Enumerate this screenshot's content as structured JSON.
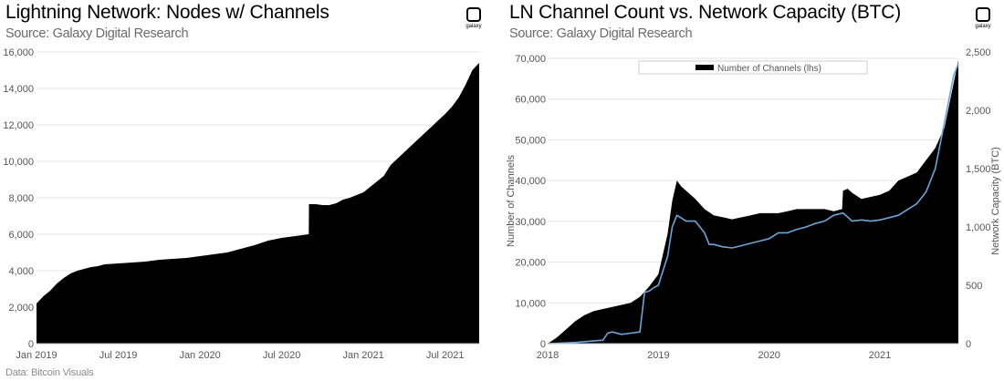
{
  "colors": {
    "area": "#000000",
    "line": "#6aa6d8",
    "text": "#555555"
  },
  "logo": {
    "text": "galaxy"
  },
  "left_panel": {
    "title": "Lightning Network: Nodes w/ Channels",
    "subtitle": "Source: Galaxy Digital Research",
    "footnote": "Data: Bitcoin Visuals"
  },
  "right_panel": {
    "title": "LN Channel Count vs. Network Capacity (BTC)",
    "subtitle": "Source: Galaxy Digital Research"
  },
  "chart_data": [
    {
      "type": "area",
      "title": "Lightning Network: Nodes w/ Channels",
      "xlabel": "",
      "ylabel": "",
      "x_unit": "months since Jan 2019",
      "xlim": [
        0,
        32.5
      ],
      "ylim": [
        0,
        16000
      ],
      "yticks": [
        0,
        2000,
        4000,
        6000,
        8000,
        10000,
        12000,
        14000,
        16000
      ],
      "ytick_labels": [
        "0",
        "2,000",
        "4,000",
        "6,000",
        "8,000",
        "10,000",
        "12,000",
        "14,000",
        "16,000"
      ],
      "xticks": [
        0,
        6,
        12,
        18,
        24,
        30
      ],
      "xtick_labels": [
        "Jan 2019",
        "Jul 2019",
        "Jan 2020",
        "Jul 2020",
        "Jan 2021",
        "Jul 2021"
      ],
      "grid": true,
      "series": [
        {
          "name": "Nodes with Channels",
          "x": [
            0,
            0.5,
            1,
            1.5,
            2,
            2.5,
            3,
            3.5,
            4,
            4.5,
            5,
            6,
            7,
            8,
            9,
            10,
            11,
            12,
            13,
            14,
            15,
            16,
            17,
            18,
            19,
            19.99,
            20,
            20.5,
            21,
            21.5,
            22,
            22.5,
            23,
            24,
            25,
            25.5,
            26,
            27,
            28,
            29,
            30,
            30.5,
            31,
            31.5,
            32,
            32.5
          ],
          "values": [
            2200,
            2600,
            2900,
            3300,
            3600,
            3850,
            4000,
            4100,
            4200,
            4250,
            4350,
            4400,
            4450,
            4500,
            4600,
            4650,
            4700,
            4800,
            4900,
            5000,
            5200,
            5400,
            5650,
            5800,
            5900,
            6000,
            7650,
            7650,
            7600,
            7600,
            7700,
            7900,
            8000,
            8300,
            8900,
            9200,
            9800,
            10500,
            11200,
            11900,
            12600,
            13000,
            13500,
            14200,
            15000,
            15400
          ]
        }
      ]
    },
    {
      "type": "area",
      "title": "LN Channel Count vs. Network Capacity (BTC)",
      "xlabel": "",
      "ylabel": "Number of Channels",
      "y2label": "Network Capacity (BTC)",
      "x_unit": "months since Jan 2018",
      "xlim": [
        0,
        44.5
      ],
      "ylim": [
        0,
        70000
      ],
      "y2lim": [
        0,
        2500
      ],
      "yticks": [
        0,
        10000,
        20000,
        30000,
        40000,
        50000,
        60000,
        70000
      ],
      "ytick_labels": [
        "0",
        "10,000",
        "20,000",
        "30,000",
        "40,000",
        "50,000",
        "60,000",
        "70,000"
      ],
      "y2ticks": [
        0,
        500,
        1000,
        1500,
        2000,
        2500
      ],
      "y2tick_labels": [
        "0",
        "500",
        "1,000",
        "1,500",
        "2,000",
        "2,500"
      ],
      "xticks": [
        0,
        12,
        24,
        36
      ],
      "xtick_labels": [
        "2018",
        "2019",
        "2020",
        "2021"
      ],
      "grid": true,
      "legend": {
        "position": "top-center",
        "entries": [
          "Number of Channels (lhs)"
        ]
      },
      "series": [
        {
          "name": "Number of Channels (lhs)",
          "kind": "area",
          "axis": "left",
          "x": [
            0,
            1,
            2,
            3,
            4,
            5,
            6,
            7,
            8,
            9,
            10,
            11,
            12,
            13,
            13.5,
            14,
            14.5,
            15,
            16,
            17,
            18,
            19,
            20,
            21,
            22,
            23,
            24,
            25,
            26,
            27,
            28,
            29,
            30,
            31,
            31.9,
            32,
            32.5,
            33,
            34,
            35,
            36,
            37,
            38,
            39,
            40,
            41,
            42,
            43,
            44,
            44.5
          ],
          "values": [
            0,
            1500,
            3500,
            5500,
            7000,
            8000,
            8500,
            9000,
            9500,
            10000,
            11500,
            14000,
            17000,
            27000,
            35000,
            40000,
            38500,
            37500,
            35500,
            33000,
            31500,
            31000,
            30500,
            31000,
            31500,
            32000,
            32000,
            32000,
            32500,
            33000,
            33000,
            33000,
            33000,
            32500,
            33000,
            37500,
            38000,
            37000,
            35500,
            36000,
            36500,
            37500,
            40000,
            41000,
            42000,
            45000,
            48000,
            53000,
            64000,
            69500
          ]
        },
        {
          "name": "Network Capacity (BTC)",
          "kind": "line",
          "axis": "right",
          "x": [
            0,
            3,
            6,
            6.5,
            7,
            8,
            9,
            10,
            10.5,
            11,
            11.5,
            12,
            13,
            13.5,
            14,
            15,
            16,
            17,
            17.5,
            18,
            19,
            20,
            21,
            22,
            23,
            24,
            25,
            26,
            27,
            28,
            29,
            30,
            31,
            32,
            33,
            34,
            35,
            36,
            37,
            38,
            39,
            40,
            41,
            42,
            42.5,
            43,
            44,
            44.5
          ],
          "values": [
            0,
            10,
            30,
            90,
            100,
            80,
            90,
            100,
            440,
            450,
            480,
            500,
            750,
            1000,
            1100,
            1050,
            1050,
            950,
            850,
            850,
            830,
            820,
            840,
            860,
            880,
            900,
            950,
            950,
            980,
            1000,
            1030,
            1050,
            1100,
            1120,
            1050,
            1060,
            1050,
            1060,
            1080,
            1100,
            1150,
            1200,
            1300,
            1500,
            1700,
            1900,
            2300,
            2400
          ]
        }
      ]
    }
  ]
}
